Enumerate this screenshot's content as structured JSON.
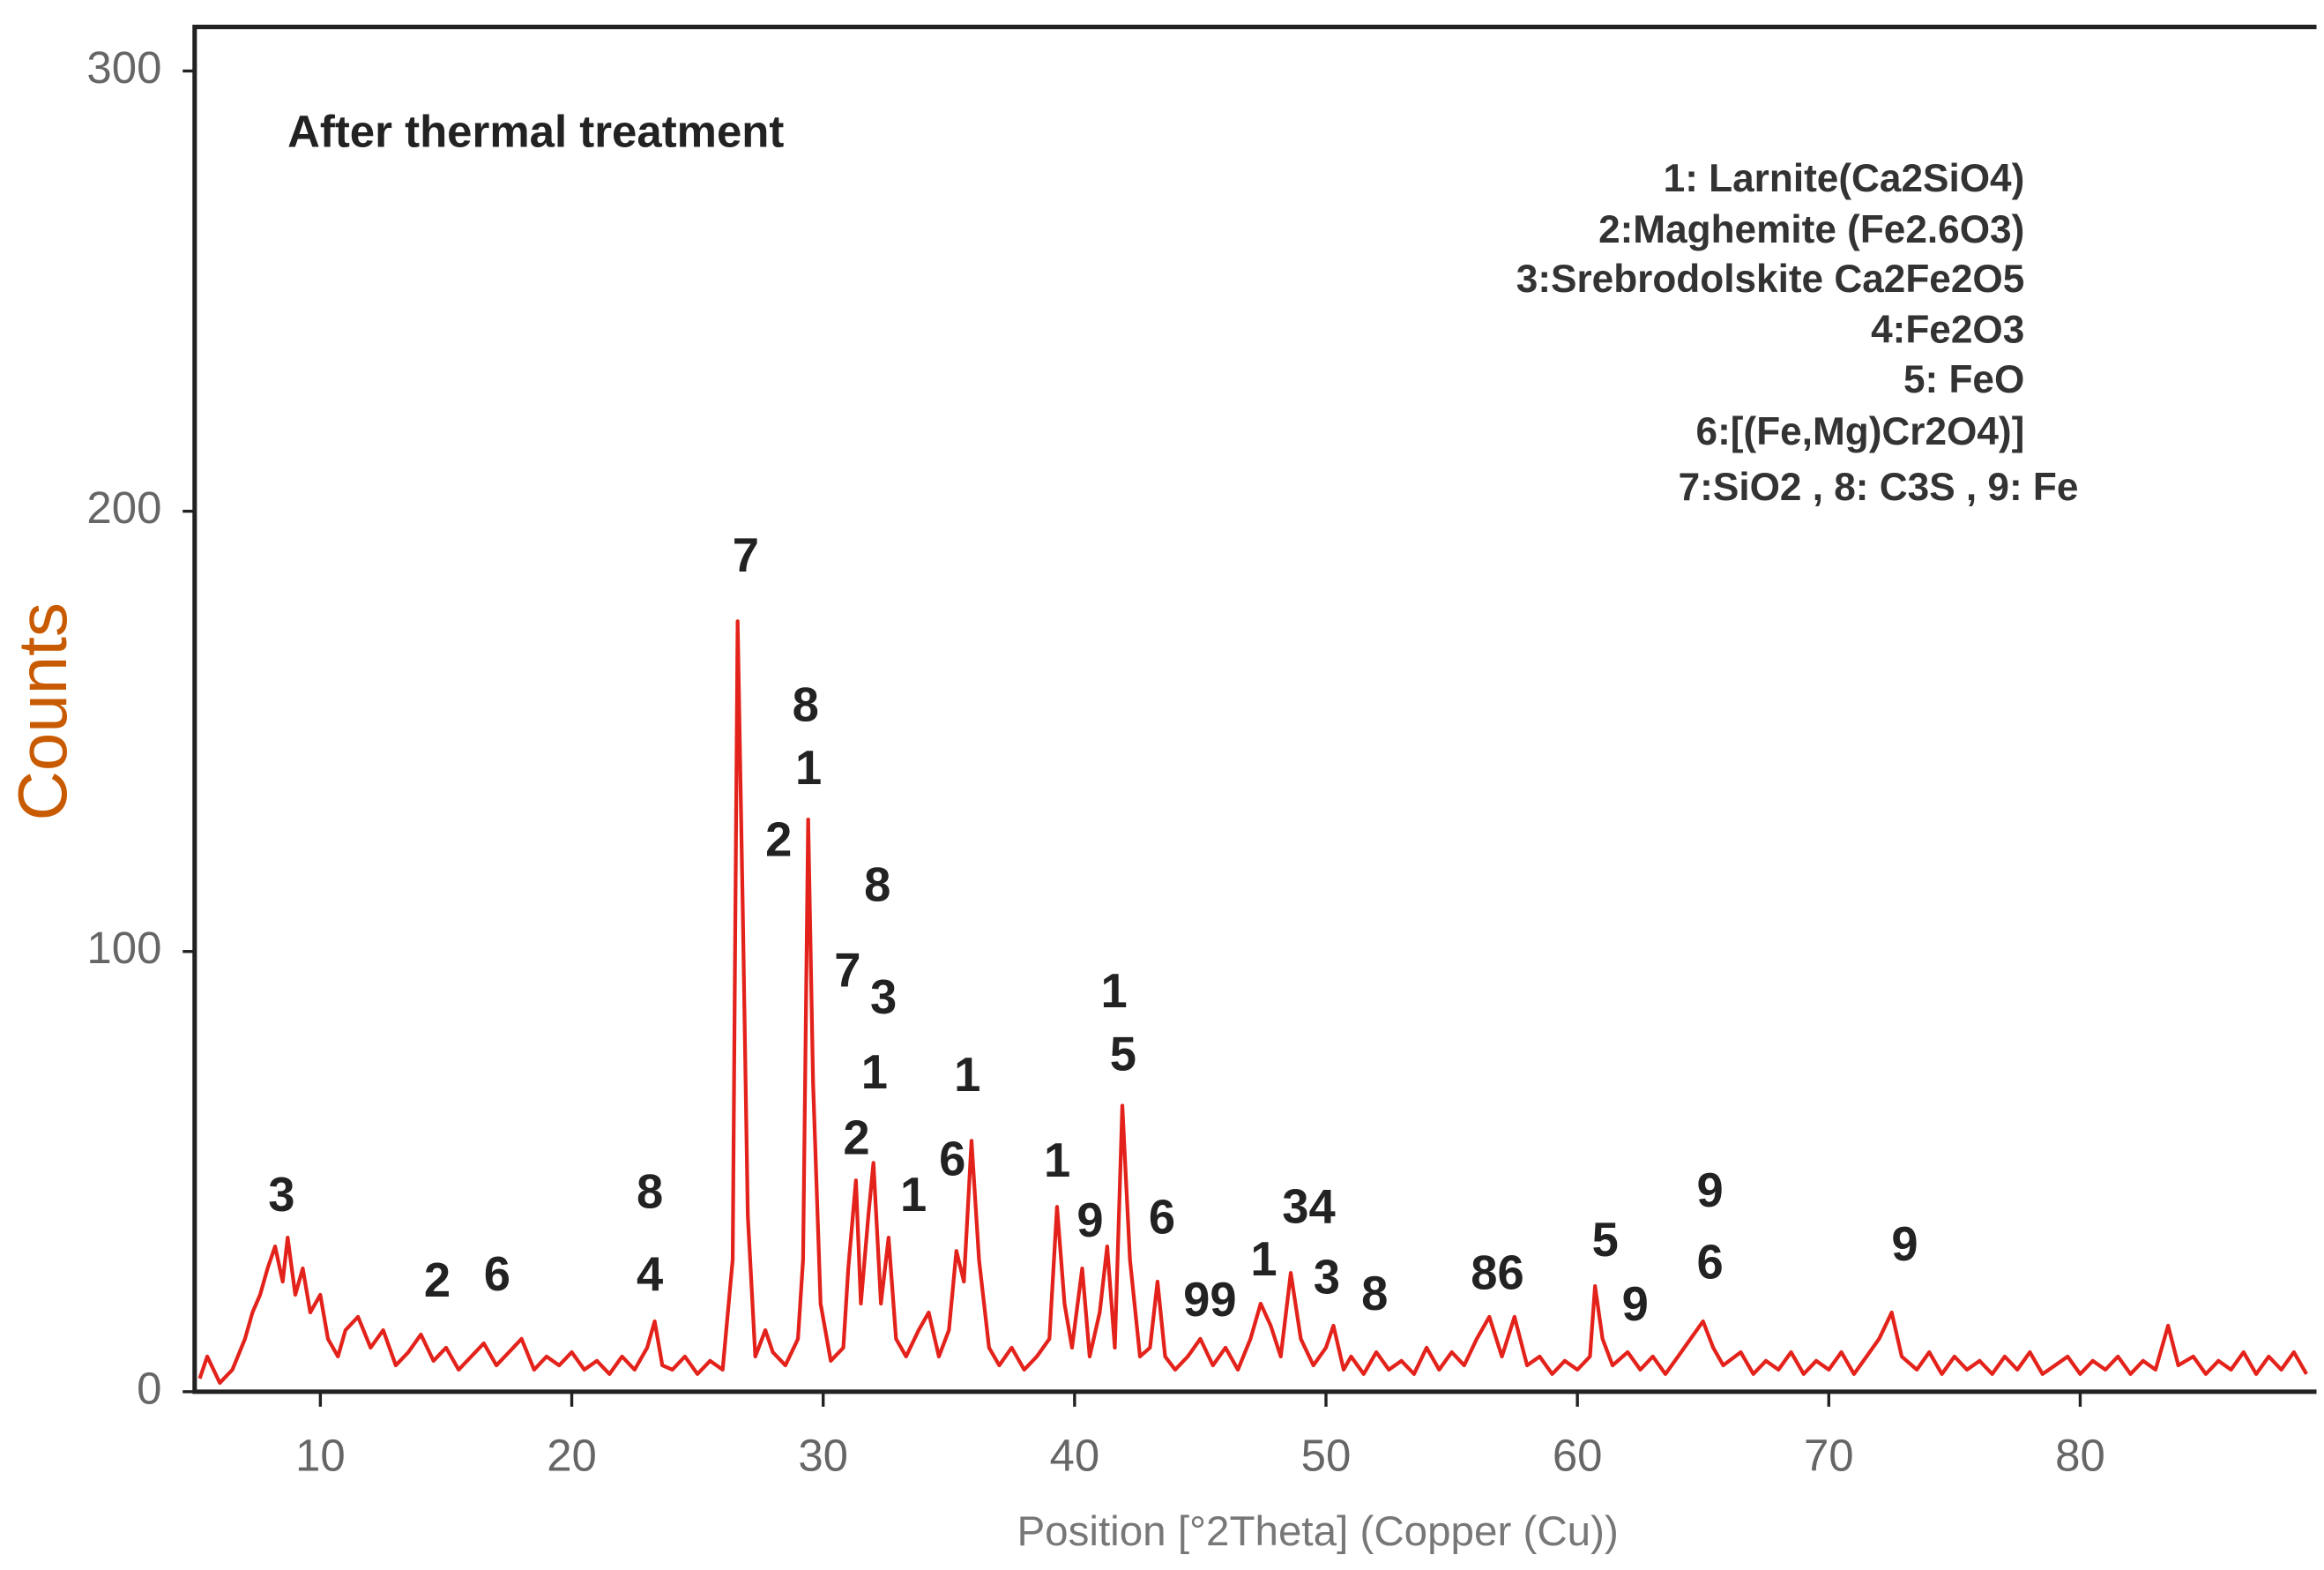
{
  "chart_data": {
    "type": "line",
    "title": "After thermal treatment",
    "x_label": "Position [°2Theta] (Copper (Cu))",
    "y_label": "Counts",
    "xlim": [
      5,
      89.4
    ],
    "ylim": [
      0,
      310
    ],
    "xticks": [
      10,
      20,
      30,
      40,
      50,
      60,
      70,
      80
    ],
    "yticks": [
      0,
      100,
      200,
      300
    ],
    "phase_legend": [
      "1: Larnite(Ca2SiO4)",
      "2:Maghemite (Fe2.6O3)",
      "3:Srebrodolskite Ca2Fe2O5",
      "4:Fe2O3",
      "5: FeO",
      "6:[(Fe,Mg)Cr2O4)]",
      "7:SiO2  , 8: C3S  , 9: Fe"
    ],
    "peak_labels": [
      "3",
      "2",
      "6",
      "8",
      "4",
      "7",
      "8",
      "1",
      "2",
      "8",
      "7",
      "3",
      "1",
      "2",
      "1",
      "6",
      "1",
      "1",
      "9",
      "6",
      "1",
      "5",
      "99",
      "1",
      "34",
      "3",
      "8",
      "86",
      "5",
      "9",
      "9",
      "6",
      "9"
    ],
    "series": [
      {
        "color": "#e3231b",
        "x": [
          5.2,
          5.5,
          6,
          6.5,
          7,
          7.3,
          7.6,
          7.9,
          8.2,
          8.5,
          8.7,
          9,
          9.3,
          9.6,
          10,
          10.3,
          10.7,
          11,
          11.5,
          12,
          12.5,
          13,
          13.5,
          14,
          14.5,
          15,
          15.5,
          16,
          16.5,
          17,
          17.5,
          18,
          18.5,
          19,
          19.5,
          20,
          20.5,
          21,
          21.5,
          22,
          22.5,
          23,
          23.3,
          23.6,
          24,
          24.5,
          25,
          25.5,
          26,
          26.4,
          26.6,
          26.8,
          27,
          27.3,
          27.7,
          28,
          28.5,
          29,
          29.2,
          29.4,
          29.6,
          29.9,
          30.3,
          30.8,
          31,
          31.3,
          31.5,
          31.8,
          32,
          32.3,
          32.6,
          32.9,
          33.3,
          33.8,
          34.2,
          34.6,
          35,
          35.3,
          35.6,
          35.9,
          36.2,
          36.6,
          37,
          37.5,
          38,
          38.5,
          39,
          39.3,
          39.6,
          39.9,
          40.3,
          40.6,
          41,
          41.3,
          41.6,
          41.9,
          42.2,
          42.6,
          43,
          43.3,
          43.6,
          44,
          44.5,
          45,
          45.5,
          46,
          46.5,
          47,
          47.4,
          47.8,
          48.2,
          48.6,
          49,
          49.5,
          50,
          50.3,
          50.7,
          51,
          51.5,
          52,
          52.5,
          53,
          53.5,
          54,
          54.5,
          55,
          55.5,
          56,
          56.5,
          57,
          57.5,
          58,
          58.5,
          59,
          59.5,
          60,
          60.5,
          60.7,
          61,
          61.4,
          62,
          62.5,
          63,
          63.5,
          64,
          64.5,
          65,
          65.4,
          65.8,
          66.5,
          67,
          67.5,
          68,
          68.5,
          69,
          69.5,
          70,
          70.5,
          71,
          71.5,
          72,
          72.5,
          72.9,
          73.5,
          74,
          74.5,
          75,
          75.5,
          76,
          76.5,
          77,
          77.5,
          78,
          78.5,
          79,
          79.5,
          80,
          80.5,
          81,
          81.5,
          82,
          82.5,
          83,
          83.5,
          83.9,
          84.5,
          85,
          85.5,
          86,
          86.5,
          87,
          87.5,
          88,
          88.5,
          89
        ],
        "values": [
          3,
          8,
          2,
          5,
          12,
          18,
          22,
          28,
          33,
          25,
          35,
          22,
          28,
          18,
          22,
          12,
          8,
          14,
          17,
          10,
          14,
          6,
          9,
          13,
          7,
          10,
          5,
          8,
          11,
          6,
          9,
          12,
          5,
          8,
          6,
          9,
          5,
          7,
          4,
          8,
          5,
          10,
          16,
          6,
          5,
          8,
          4,
          7,
          5,
          30,
          175,
          110,
          40,
          8,
          14,
          9,
          6,
          12,
          30,
          130,
          70,
          20,
          7,
          10,
          28,
          48,
          20,
          40,
          52,
          20,
          35,
          12,
          8,
          14,
          18,
          8,
          14,
          32,
          25,
          57,
          30,
          10,
          6,
          10,
          5,
          8,
          12,
          42,
          20,
          10,
          28,
          8,
          18,
          33,
          10,
          65,
          30,
          8,
          10,
          25,
          8,
          5,
          8,
          12,
          6,
          10,
          5,
          12,
          20,
          15,
          8,
          27,
          12,
          6,
          10,
          15,
          5,
          8,
          4,
          9,
          5,
          7,
          4,
          10,
          5,
          9,
          6,
          12,
          17,
          8,
          17,
          6,
          8,
          4,
          7,
          5,
          8,
          24,
          12,
          6,
          9,
          5,
          8,
          4,
          8,
          12,
          16,
          10,
          6,
          9,
          4,
          7,
          5,
          9,
          4,
          7,
          5,
          9,
          4,
          8,
          12,
          18,
          8,
          5,
          9,
          4,
          8,
          5,
          7,
          4,
          8,
          5,
          9,
          4,
          6,
          8,
          4,
          7,
          5,
          8,
          4,
          7,
          5,
          15,
          6,
          8,
          4,
          7,
          5,
          9,
          4,
          8,
          5,
          9,
          4
        ]
      }
    ]
  }
}
